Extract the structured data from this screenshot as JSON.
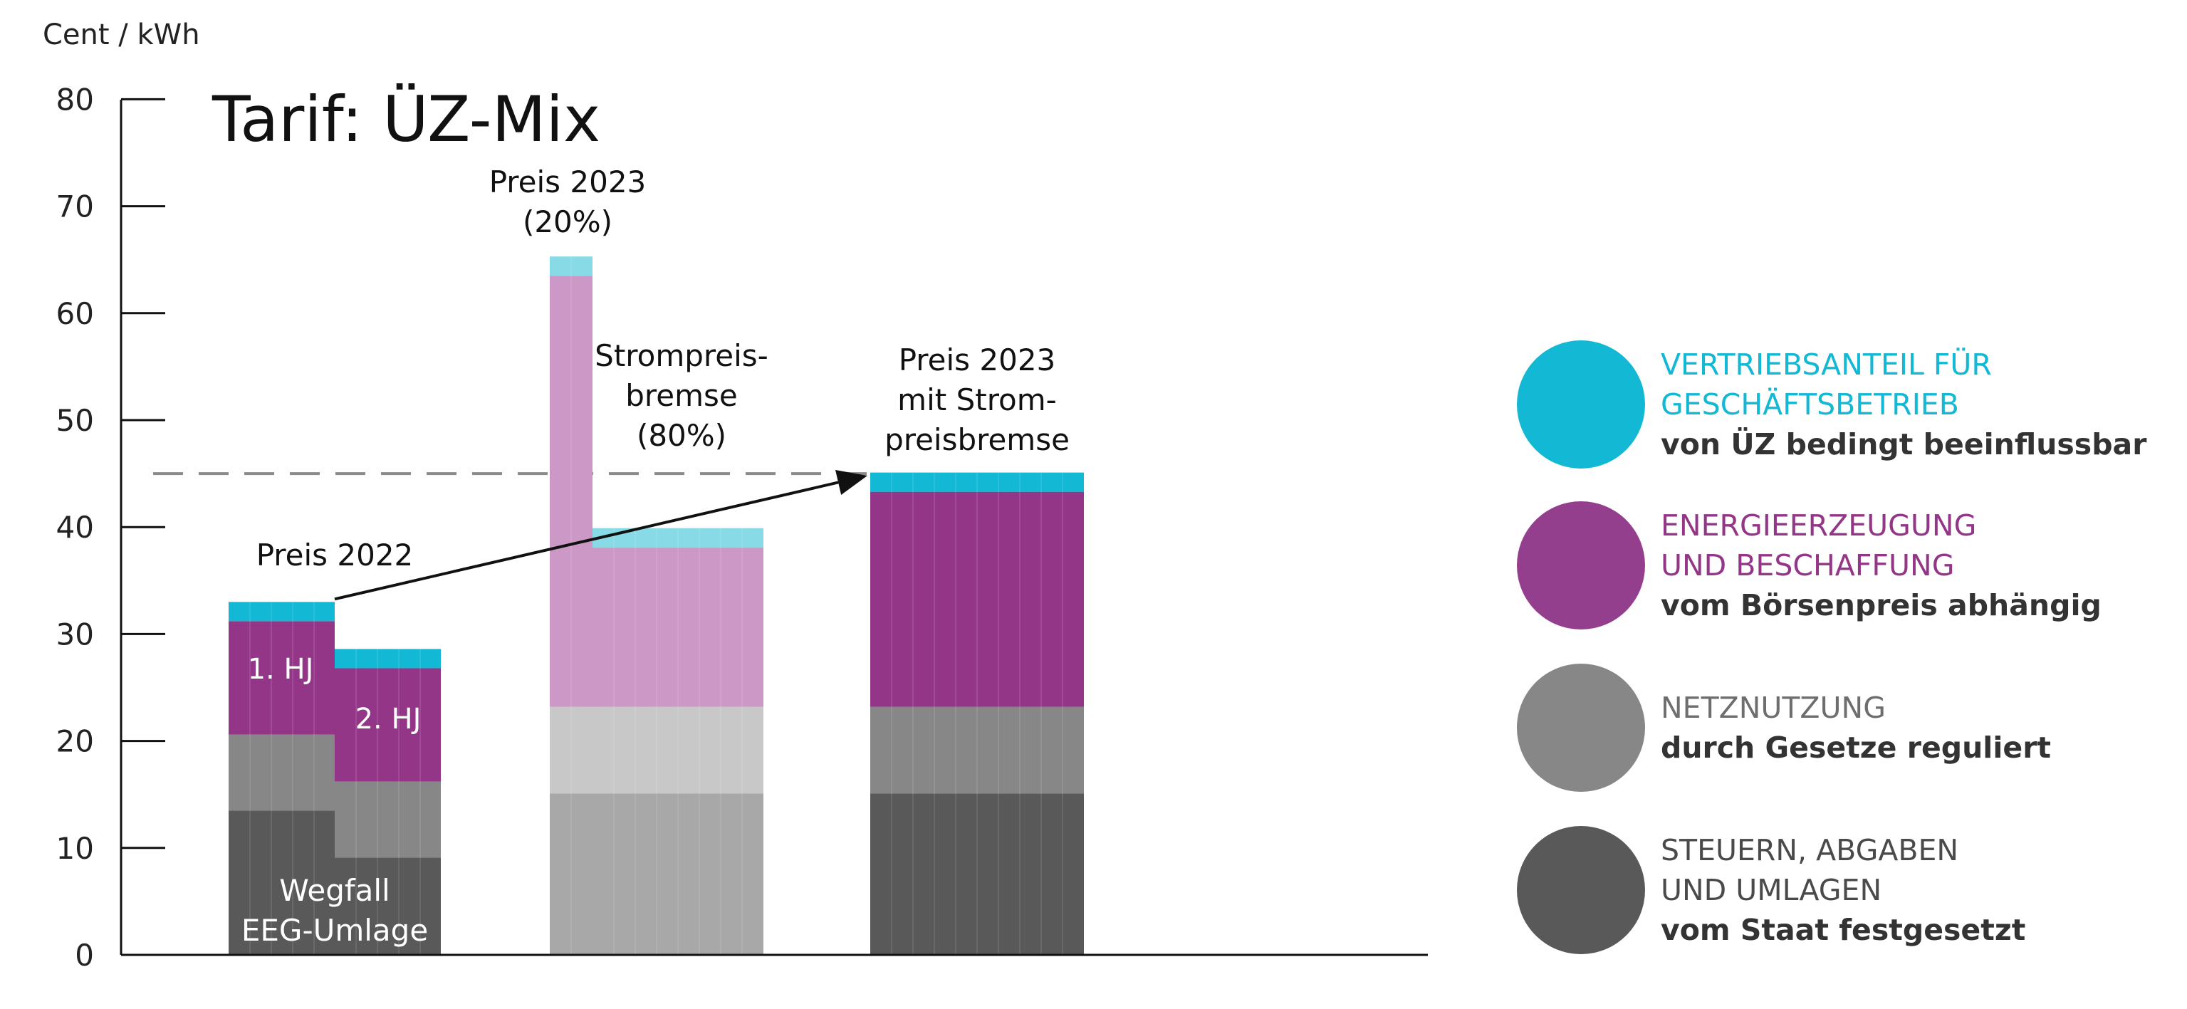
{
  "chart_data": {
    "type": "bar",
    "title": "Tarif: ÜZ-Mix",
    "ylabel": "Cent / kWh",
    "ylim": [
      0,
      80
    ],
    "yticks": [
      0,
      10,
      20,
      30,
      40,
      50,
      60,
      70,
      80
    ],
    "reference_line": 45,
    "grid": false,
    "legend_position": "right",
    "components": [
      "Steuern, Abgaben und Umlagen",
      "Netznutzung",
      "Energieerzeugung und Beschaffung",
      "Vertriebsanteil"
    ],
    "bars": [
      {
        "name": "Preis 2022 – 1. HJ",
        "label": "1. HJ",
        "values": [
          13.5,
          7.1,
          10.6,
          1.8
        ],
        "colors": [
          "#595959",
          "#878787",
          "#943688",
          "#12b8d4"
        ]
      },
      {
        "name": "Preis 2022 – 2. HJ",
        "label": "2. HJ",
        "values": [
          9.1,
          7.1,
          10.6,
          1.8
        ],
        "colors": [
          "#595959",
          "#878787",
          "#943688",
          "#12b8d4"
        ]
      },
      {
        "name": "Preis 2023 (20%)",
        "values": [
          15.1,
          8.1,
          40.3,
          1.8
        ],
        "colors": [
          "#a8a8a8",
          "#c8c8c8",
          "#cc99c6",
          "#88dbe6"
        ]
      },
      {
        "name": "Strompreisbremse (80%)",
        "values": [
          15.1,
          8.1,
          14.9,
          1.8
        ],
        "colors": [
          "#a8a8a8",
          "#c8c8c8",
          "#cc99c6",
          "#88dbe6"
        ]
      },
      {
        "name": "Preis 2023 mit Strompreisbremse",
        "values": [
          15.1,
          8.1,
          20.1,
          1.8
        ],
        "colors": [
          "#595959",
          "#878787",
          "#943688",
          "#12b8d4"
        ]
      }
    ],
    "annotations": {
      "preis_2022": "Preis 2022",
      "preis_2023": [
        "Preis 2023",
        "(20%)"
      ],
      "strompreisbremse": [
        "Strompreis-",
        "bremse",
        "(80%)"
      ],
      "preis_mit_bremse": [
        "Preis 2023",
        "mit Strom-",
        "preisbremse"
      ],
      "wegfall": [
        "Wegfall",
        "EEG-Umlage"
      ],
      "hj1": "1. HJ",
      "hj2": "2. HJ"
    }
  },
  "legend": [
    {
      "color": "#12b8d4",
      "title_color": "#12b8d4",
      "title": [
        "VERTRIEBSANTEIL FÜR",
        "GESCHÄFTSBETRIEB"
      ],
      "subtitle": "von ÜZ bedingt beeinflussbar"
    },
    {
      "color": "#943f8e",
      "title_color": "#943688",
      "title": [
        "ENERGIEERZEUGUNG",
        "UND BESCHAFFUNG"
      ],
      "subtitle": "vom Börsenpreis  abhängig"
    },
    {
      "color": "#878787",
      "title_color": "#6e6e6e",
      "title": [
        "NETZNUTZUNG"
      ],
      "subtitle": "durch Gesetze reguliert"
    },
    {
      "color": "#595959",
      "title_color": "#4a4a4a",
      "title": [
        "STEUERN, ABGABEN",
        "UND UMLAGEN"
      ],
      "subtitle": "vom Staat festgesetzt"
    }
  ]
}
